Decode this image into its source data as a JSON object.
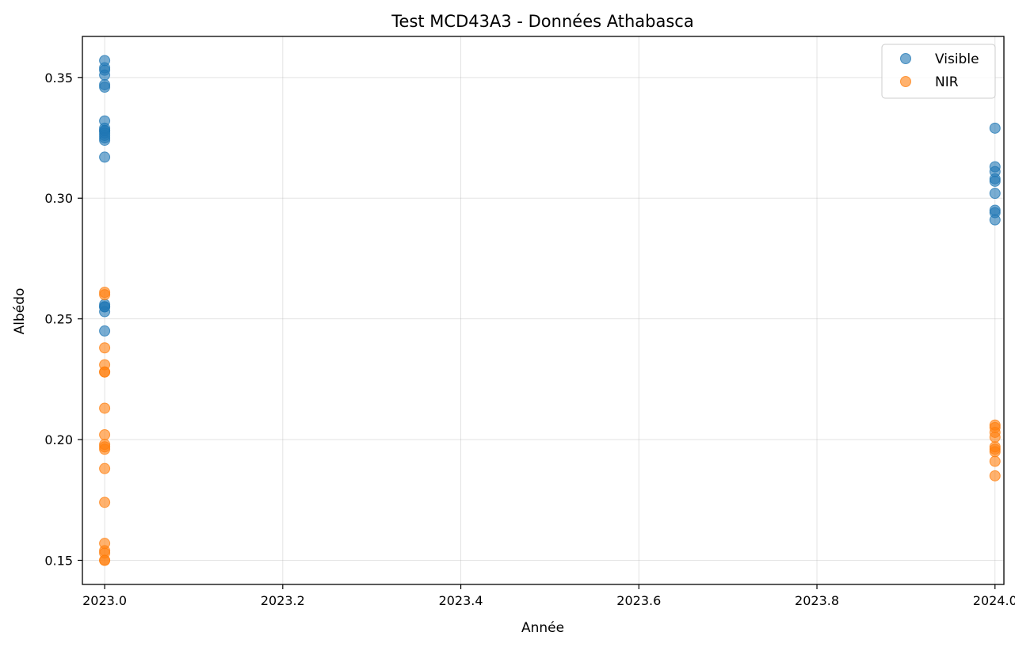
{
  "chart_data": {
    "type": "scatter",
    "title": "Test MCD43A3 - Données Athabasca",
    "xlabel": "Année",
    "ylabel": "Albédo",
    "xlim": [
      2022.975,
      2024.01
    ],
    "ylim": [
      0.14,
      0.367
    ],
    "xticks": [
      2023.0,
      2023.2,
      2023.4,
      2023.6,
      2023.8,
      2024.0
    ],
    "xtick_labels": [
      "2023.0",
      "2023.2",
      "2023.4",
      "2023.6",
      "2023.8",
      "2024.0"
    ],
    "yticks": [
      0.15,
      0.2,
      0.25,
      0.3,
      0.35
    ],
    "ytick_labels": [
      "0.15",
      "0.20",
      "0.25",
      "0.30",
      "0.35"
    ],
    "grid": true,
    "legend_position": "top-right",
    "series": [
      {
        "name": "Visible",
        "color": "#1f77b4",
        "x": [
          2023.0,
          2023.0,
          2023.0,
          2023.0,
          2023.0,
          2023.0,
          2023.0,
          2023.0,
          2023.0,
          2023.0,
          2023.0,
          2023.0,
          2023.0,
          2023.0,
          2023.0,
          2023.0,
          2023.0,
          2023.0,
          2023.0,
          2023.0,
          2024.0,
          2024.0,
          2024.0,
          2024.0,
          2024.0,
          2024.0,
          2024.0,
          2024.0,
          2024.0
        ],
        "y": [
          0.357,
          0.354,
          0.353,
          0.351,
          0.347,
          0.346,
          0.332,
          0.329,
          0.328,
          0.327,
          0.325,
          0.324,
          0.317,
          0.256,
          0.255,
          0.255,
          0.253,
          0.245,
          0.328,
          0.326,
          0.329,
          0.313,
          0.311,
          0.308,
          0.307,
          0.302,
          0.295,
          0.294,
          0.291
        ]
      },
      {
        "name": "NIR",
        "color": "#ff7f0e",
        "x": [
          2023.0,
          2023.0,
          2023.0,
          2023.0,
          2023.0,
          2023.0,
          2023.0,
          2023.0,
          2023.0,
          2023.0,
          2023.0,
          2023.0,
          2023.0,
          2023.0,
          2023.0,
          2023.0,
          2023.0,
          2023.0,
          2024.0,
          2024.0,
          2024.0,
          2024.0,
          2024.0,
          2024.0,
          2024.0,
          2024.0,
          2024.0
        ],
        "y": [
          0.261,
          0.26,
          0.238,
          0.231,
          0.228,
          0.228,
          0.213,
          0.202,
          0.198,
          0.197,
          0.196,
          0.188,
          0.174,
          0.157,
          0.154,
          0.153,
          0.15,
          0.15,
          0.206,
          0.205,
          0.203,
          0.201,
          0.197,
          0.196,
          0.195,
          0.191,
          0.185
        ]
      }
    ]
  }
}
